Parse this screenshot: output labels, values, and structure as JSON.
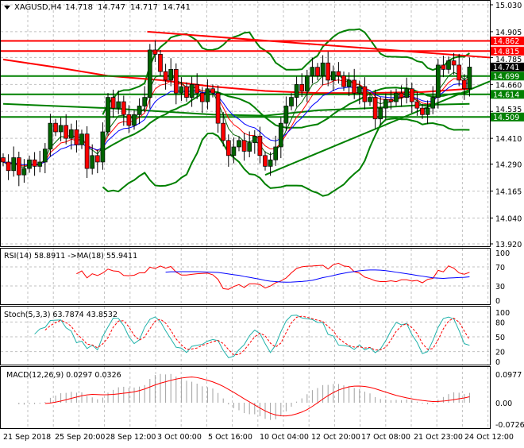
{
  "header": {
    "symbol": "XAGUSD,H4",
    "open": "14.718",
    "high": "14.747",
    "low": "14.717",
    "close": "14.741"
  },
  "price_axis": [
    "15.030",
    "14.905",
    "14.785",
    "14.660",
    "14.535",
    "14.410",
    "14.290",
    "14.165",
    "14.040",
    "13.920"
  ],
  "levels": [
    {
      "label": "14.862",
      "value": 14.862,
      "color": "#ff0000"
    },
    {
      "label": "14.815",
      "value": 14.815,
      "color": "#ff0000"
    },
    {
      "label": "14.699",
      "value": 14.699,
      "color": "#008000"
    },
    {
      "label": "14.614",
      "value": 14.614,
      "color": "#008000"
    },
    {
      "label": "14.509",
      "value": 14.509,
      "color": "#008000"
    }
  ],
  "current_price": {
    "label": "14.741",
    "value": 14.741,
    "color": "#000000"
  },
  "time_axis": [
    "21 Sep 2018",
    "25 Sep 20:00",
    "28 Sep 12:00",
    "3 Oct 00:00",
    "5 Oct 16:00",
    "10 Oct 04:00",
    "12 Oct 20:00",
    "17 Oct 08:00",
    "21 Oct 23:00",
    "24 Oct 12:00"
  ],
  "rsi": {
    "title": "RSI(14) 58.8911  ->MA(18) 55.9411",
    "axis": [
      "100",
      "70",
      "30",
      "0"
    ]
  },
  "stoch": {
    "title": "Stoch(5,3,3) 63.7874 43.8532",
    "axis": [
      "100",
      "80",
      "50",
      "20",
      "0"
    ]
  },
  "macd": {
    "title": "MACD(12,26,9) 0.0297 0.0326",
    "axis": [
      "0.0977",
      "0.00",
      "-0.0726"
    ]
  },
  "chart_data": {
    "type": "candlestick",
    "ylim": [
      13.92,
      15.03
    ],
    "grid": true,
    "close": [
      14.3,
      14.26,
      14.32,
      14.24,
      14.27,
      14.31,
      14.28,
      14.3,
      14.36,
      14.48,
      14.44,
      14.47,
      14.41,
      14.45,
      14.38,
      14.43,
      14.27,
      14.33,
      14.3,
      14.44,
      14.6,
      14.55,
      14.58,
      14.52,
      14.47,
      14.52,
      14.56,
      14.6,
      14.82,
      14.8,
      14.72,
      14.68,
      14.73,
      14.62,
      14.65,
      14.6,
      14.66,
      14.62,
      14.58,
      14.64,
      14.62,
      14.48,
      14.4,
      14.33,
      14.37,
      14.4,
      14.35,
      14.39,
      14.42,
      14.33,
      14.28,
      14.31,
      14.37,
      14.48,
      14.56,
      14.6,
      14.66,
      14.63,
      14.7,
      14.74,
      14.7,
      14.76,
      14.68,
      14.72,
      14.7,
      14.65,
      14.68,
      14.62,
      14.65,
      14.58,
      14.6,
      14.5,
      14.55,
      14.59,
      14.58,
      14.62,
      14.6,
      14.64,
      14.58,
      14.55,
      14.52,
      14.55,
      14.6,
      14.75,
      14.73,
      14.77,
      14.75,
      14.68,
      14.64,
      14.741
    ],
    "ma_long_red": [
      [
        0,
        14.776
      ],
      [
        10,
        14.74
      ],
      [
        20,
        14.7
      ],
      [
        30,
        14.68
      ],
      [
        40,
        14.65
      ],
      [
        50,
        14.63
      ],
      [
        60,
        14.62
      ],
      [
        70,
        14.62
      ],
      [
        80,
        14.625
      ],
      [
        89,
        14.64
      ]
    ],
    "ma_flat_green": [
      [
        0,
        14.57
      ],
      [
        20,
        14.55
      ],
      [
        40,
        14.52
      ],
      [
        50,
        14.515
      ],
      [
        60,
        14.54
      ],
      [
        70,
        14.55
      ],
      [
        80,
        14.565
      ],
      [
        89,
        14.57
      ]
    ],
    "trendline_support": [
      [
        50,
        14.24
      ],
      [
        93,
        14.675
      ]
    ],
    "trendline_resistance": [
      [
        27.5,
        14.905
      ],
      [
        93,
        14.785
      ]
    ]
  }
}
